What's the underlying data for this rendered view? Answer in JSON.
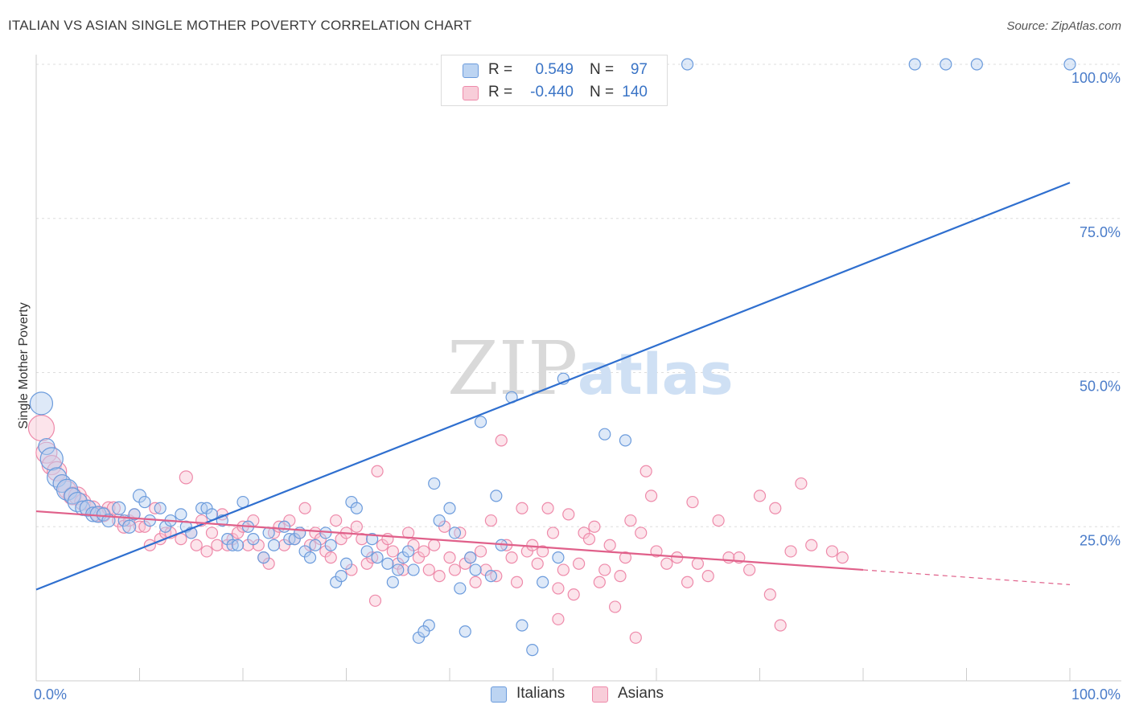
{
  "header": {
    "title": "ITALIAN VS ASIAN SINGLE MOTHER POVERTY CORRELATION CHART",
    "source": "Source: ZipAtlas.com"
  },
  "watermark": {
    "part1": "ZIP",
    "part2": "atlas"
  },
  "legend": {
    "rows": [
      {
        "r_label": "R =",
        "r_value": "0.549",
        "n_label": "N =",
        "n_value": "97"
      },
      {
        "r_label": "R =",
        "r_value": "-0.440",
        "n_label": "N =",
        "n_value": "140"
      }
    ]
  },
  "bottom_legend": {
    "italians": "Italians",
    "asians": "Asians"
  },
  "chart_data": {
    "type": "scatter",
    "title": "ITALIAN VS ASIAN SINGLE MOTHER POVERTY CORRELATION CHART",
    "xlabel": "",
    "ylabel": "Single Mother Poverty",
    "xlim": [
      0,
      100
    ],
    "ylim": [
      0,
      100
    ],
    "x_ticks": [
      "0.0%",
      "100.0%"
    ],
    "y_ticks": [
      "25.0%",
      "50.0%",
      "75.0%",
      "100.0%"
    ],
    "y_tick_values": [
      25,
      50,
      75,
      100
    ],
    "grid": true,
    "legend_position": "top-center",
    "colors": {
      "italians": "#6b9bdc",
      "asians": "#ee8aaa",
      "italians_line": "#2f6fcf",
      "asians_line": "#e0608a"
    },
    "series": [
      {
        "name": "Italians",
        "r": 0.549,
        "n": 97,
        "trend": {
          "x": [
            0,
            100
          ],
          "y": [
            14.8,
            80.8
          ]
        },
        "points": [
          [
            0.5,
            45,
            14
          ],
          [
            1,
            38,
            10
          ],
          [
            1.5,
            36,
            14
          ],
          [
            2,
            33,
            12
          ],
          [
            2.5,
            32,
            11
          ],
          [
            3,
            31,
            13
          ],
          [
            3.5,
            30,
            10
          ],
          [
            4,
            29,
            12
          ],
          [
            4.5,
            28,
            9
          ],
          [
            5,
            28,
            10
          ],
          [
            5.5,
            27,
            9
          ],
          [
            6,
            27,
            10
          ],
          [
            6.5,
            27,
            8
          ],
          [
            7,
            26,
            8
          ],
          [
            8,
            28,
            8
          ],
          [
            8.5,
            26,
            7
          ],
          [
            9,
            25,
            8
          ],
          [
            9.5,
            27,
            7
          ],
          [
            10,
            30,
            8
          ],
          [
            10.5,
            29,
            7
          ],
          [
            11,
            26,
            7
          ],
          [
            12,
            28,
            7
          ],
          [
            12.5,
            25,
            7
          ],
          [
            13,
            26,
            7
          ],
          [
            14,
            27,
            7
          ],
          [
            14.5,
            25,
            7
          ],
          [
            15,
            24,
            7
          ],
          [
            16,
            28,
            7
          ],
          [
            16.5,
            28,
            7
          ],
          [
            17,
            27,
            7
          ],
          [
            18,
            26,
            7
          ],
          [
            18.5,
            23,
            7
          ],
          [
            19,
            22,
            7
          ],
          [
            19.5,
            22,
            7
          ],
          [
            20,
            29,
            7
          ],
          [
            20.5,
            25,
            7
          ],
          [
            21,
            23,
            7
          ],
          [
            22,
            20,
            7
          ],
          [
            22.5,
            24,
            7
          ],
          [
            23,
            22,
            7
          ],
          [
            24,
            25,
            7
          ],
          [
            24.5,
            23,
            7
          ],
          [
            25,
            23,
            7
          ],
          [
            25.5,
            24,
            7
          ],
          [
            26,
            21,
            7
          ],
          [
            26.5,
            20,
            7
          ],
          [
            27,
            22,
            7
          ],
          [
            28,
            24,
            7
          ],
          [
            28.5,
            22,
            7
          ],
          [
            29,
            16,
            7
          ],
          [
            29.5,
            17,
            7
          ],
          [
            30,
            19,
            7
          ],
          [
            30.5,
            29,
            7
          ],
          [
            31,
            28,
            7
          ],
          [
            32,
            21,
            7
          ],
          [
            32.5,
            23,
            7
          ],
          [
            33,
            20,
            7
          ],
          [
            34,
            19,
            7
          ],
          [
            34.5,
            16,
            7
          ],
          [
            35,
            18,
            7
          ],
          [
            35.5,
            20,
            7
          ],
          [
            36,
            21,
            7
          ],
          [
            36.5,
            18,
            7
          ],
          [
            37,
            7,
            7
          ],
          [
            38,
            9,
            7
          ],
          [
            38.5,
            32,
            7
          ],
          [
            39,
            26,
            7
          ],
          [
            40,
            28,
            7
          ],
          [
            40.5,
            24,
            7
          ],
          [
            41,
            15,
            7
          ],
          [
            42,
            20,
            7
          ],
          [
            42.5,
            18,
            7
          ],
          [
            43,
            42,
            7
          ],
          [
            44,
            17,
            7
          ],
          [
            44.5,
            30,
            7
          ],
          [
            45,
            22,
            7
          ],
          [
            46,
            46,
            7
          ],
          [
            47,
            9,
            7
          ],
          [
            48,
            5,
            7
          ],
          [
            49,
            16,
            7
          ],
          [
            50,
            100,
            7
          ],
          [
            50.5,
            20,
            7
          ],
          [
            51,
            49,
            7
          ],
          [
            52,
            100,
            7
          ],
          [
            55,
            40,
            7
          ],
          [
            56,
            100,
            7
          ],
          [
            57,
            39,
            7
          ],
          [
            60,
            100,
            7
          ],
          [
            63,
            100,
            7
          ],
          [
            85,
            100,
            7
          ],
          [
            88,
            100,
            7
          ],
          [
            91,
            100,
            7
          ],
          [
            100,
            100,
            7
          ],
          [
            37.5,
            8,
            7
          ],
          [
            41.5,
            8,
            7
          ]
        ]
      },
      {
        "name": "Asians",
        "r": -0.44,
        "n": 140,
        "trend": {
          "x": [
            0,
            80
          ],
          "y": [
            27.5,
            18.0
          ]
        },
        "trend_dashed": {
          "x": [
            80,
            100
          ],
          "y": [
            18.0,
            15.6
          ]
        },
        "points": [
          [
            0.5,
            41,
            16
          ],
          [
            1,
            37,
            13
          ],
          [
            1.5,
            35,
            12
          ],
          [
            2,
            34,
            12
          ],
          [
            2.5,
            32,
            11
          ],
          [
            3,
            31,
            11
          ],
          [
            3.5,
            30,
            11
          ],
          [
            4,
            30,
            11
          ],
          [
            4.5,
            29,
            10
          ],
          [
            5,
            28,
            10
          ],
          [
            5.5,
            28,
            9
          ],
          [
            6,
            27,
            9
          ],
          [
            6.5,
            27,
            9
          ],
          [
            7,
            28,
            8
          ],
          [
            7.5,
            28,
            8
          ],
          [
            8,
            26,
            8
          ],
          [
            8.5,
            25,
            8
          ],
          [
            9,
            26,
            7
          ],
          [
            9.5,
            27,
            7
          ],
          [
            10,
            25,
            7
          ],
          [
            10.5,
            25,
            7
          ],
          [
            11,
            22,
            7
          ],
          [
            11.5,
            28,
            7
          ],
          [
            12,
            23,
            7
          ],
          [
            12.5,
            24,
            7
          ],
          [
            13,
            24,
            7
          ],
          [
            14,
            23,
            7
          ],
          [
            14.5,
            33,
            8
          ],
          [
            15,
            24,
            7
          ],
          [
            15.5,
            22,
            7
          ],
          [
            16,
            26,
            7
          ],
          [
            16.5,
            21,
            7
          ],
          [
            17,
            24,
            7
          ],
          [
            17.5,
            22,
            7
          ],
          [
            18,
            27,
            7
          ],
          [
            18.5,
            22,
            7
          ],
          [
            19,
            23,
            7
          ],
          [
            19.5,
            24,
            7
          ],
          [
            20,
            25,
            7
          ],
          [
            20.5,
            22,
            7
          ],
          [
            21,
            26,
            7
          ],
          [
            21.5,
            22,
            7
          ],
          [
            22,
            20,
            7
          ],
          [
            22.5,
            19,
            7
          ],
          [
            23,
            24,
            7
          ],
          [
            23.5,
            25,
            7
          ],
          [
            24,
            22,
            7
          ],
          [
            24.5,
            26,
            7
          ],
          [
            25,
            23,
            7
          ],
          [
            25.5,
            24,
            7
          ],
          [
            26,
            28,
            7
          ],
          [
            26.5,
            22,
            7
          ],
          [
            27,
            24,
            7
          ],
          [
            27.5,
            23,
            7
          ],
          [
            28,
            21,
            7
          ],
          [
            28.5,
            20,
            7
          ],
          [
            29,
            26,
            7
          ],
          [
            29.5,
            23,
            7
          ],
          [
            30,
            24,
            7
          ],
          [
            30.5,
            18,
            7
          ],
          [
            31,
            25,
            7
          ],
          [
            31.5,
            23,
            7
          ],
          [
            32,
            19,
            7
          ],
          [
            32.5,
            20,
            7
          ],
          [
            33,
            34,
            7
          ],
          [
            33.5,
            22,
            7
          ],
          [
            34,
            23,
            7
          ],
          [
            34.5,
            21,
            7
          ],
          [
            35,
            19,
            7
          ],
          [
            35.5,
            18,
            7
          ],
          [
            36,
            24,
            7
          ],
          [
            36.5,
            22,
            7
          ],
          [
            37,
            20,
            7
          ],
          [
            37.5,
            21,
            7
          ],
          [
            38,
            18,
            7
          ],
          [
            38.5,
            22,
            7
          ],
          [
            39,
            17,
            7
          ],
          [
            39.5,
            25,
            7
          ],
          [
            40,
            20,
            7
          ],
          [
            40.5,
            18,
            7
          ],
          [
            41,
            24,
            7
          ],
          [
            41.5,
            19,
            7
          ],
          [
            42,
            20,
            7
          ],
          [
            42.5,
            16,
            7
          ],
          [
            43,
            21,
            7
          ],
          [
            43.5,
            18,
            7
          ],
          [
            44,
            26,
            7
          ],
          [
            44.5,
            17,
            7
          ],
          [
            45,
            39,
            7
          ],
          [
            45.5,
            22,
            7
          ],
          [
            46,
            20,
            7
          ],
          [
            46.5,
            16,
            7
          ],
          [
            47,
            28,
            7
          ],
          [
            47.5,
            21,
            7
          ],
          [
            48,
            22,
            7
          ],
          [
            48.5,
            19,
            7
          ],
          [
            49,
            21,
            7
          ],
          [
            49.5,
            28,
            7
          ],
          [
            50,
            24,
            7
          ],
          [
            50.5,
            15,
            7
          ],
          [
            51,
            18,
            7
          ],
          [
            51.5,
            27,
            7
          ],
          [
            52,
            14,
            7
          ],
          [
            52.5,
            19,
            7
          ],
          [
            53,
            24,
            7
          ],
          [
            53.5,
            23,
            7
          ],
          [
            54,
            25,
            7
          ],
          [
            54.5,
            16,
            7
          ],
          [
            55,
            18,
            7
          ],
          [
            55.5,
            22,
            7
          ],
          [
            56,
            12,
            7
          ],
          [
            56.5,
            17,
            7
          ],
          [
            57,
            20,
            7
          ],
          [
            57.5,
            26,
            7
          ],
          [
            58,
            7,
            7
          ],
          [
            58.5,
            24,
            7
          ],
          [
            59,
            34,
            7
          ],
          [
            59.5,
            30,
            7
          ],
          [
            60,
            21,
            7
          ],
          [
            61,
            19,
            7
          ],
          [
            62,
            20,
            7
          ],
          [
            63,
            16,
            7
          ],
          [
            63.5,
            29,
            7
          ],
          [
            64,
            19,
            7
          ],
          [
            65,
            17,
            7
          ],
          [
            66,
            26,
            7
          ],
          [
            67,
            20,
            7
          ],
          [
            68,
            20,
            7
          ],
          [
            69,
            18,
            7
          ],
          [
            70,
            30,
            7
          ],
          [
            71,
            14,
            7
          ],
          [
            71.5,
            28,
            7
          ],
          [
            72,
            9,
            7
          ],
          [
            73,
            21,
            7
          ],
          [
            74,
            32,
            7
          ],
          [
            75,
            22,
            7
          ],
          [
            77,
            21,
            7
          ],
          [
            78,
            20,
            7
          ],
          [
            50.5,
            10,
            7
          ],
          [
            32.8,
            13,
            7
          ]
        ]
      }
    ]
  }
}
